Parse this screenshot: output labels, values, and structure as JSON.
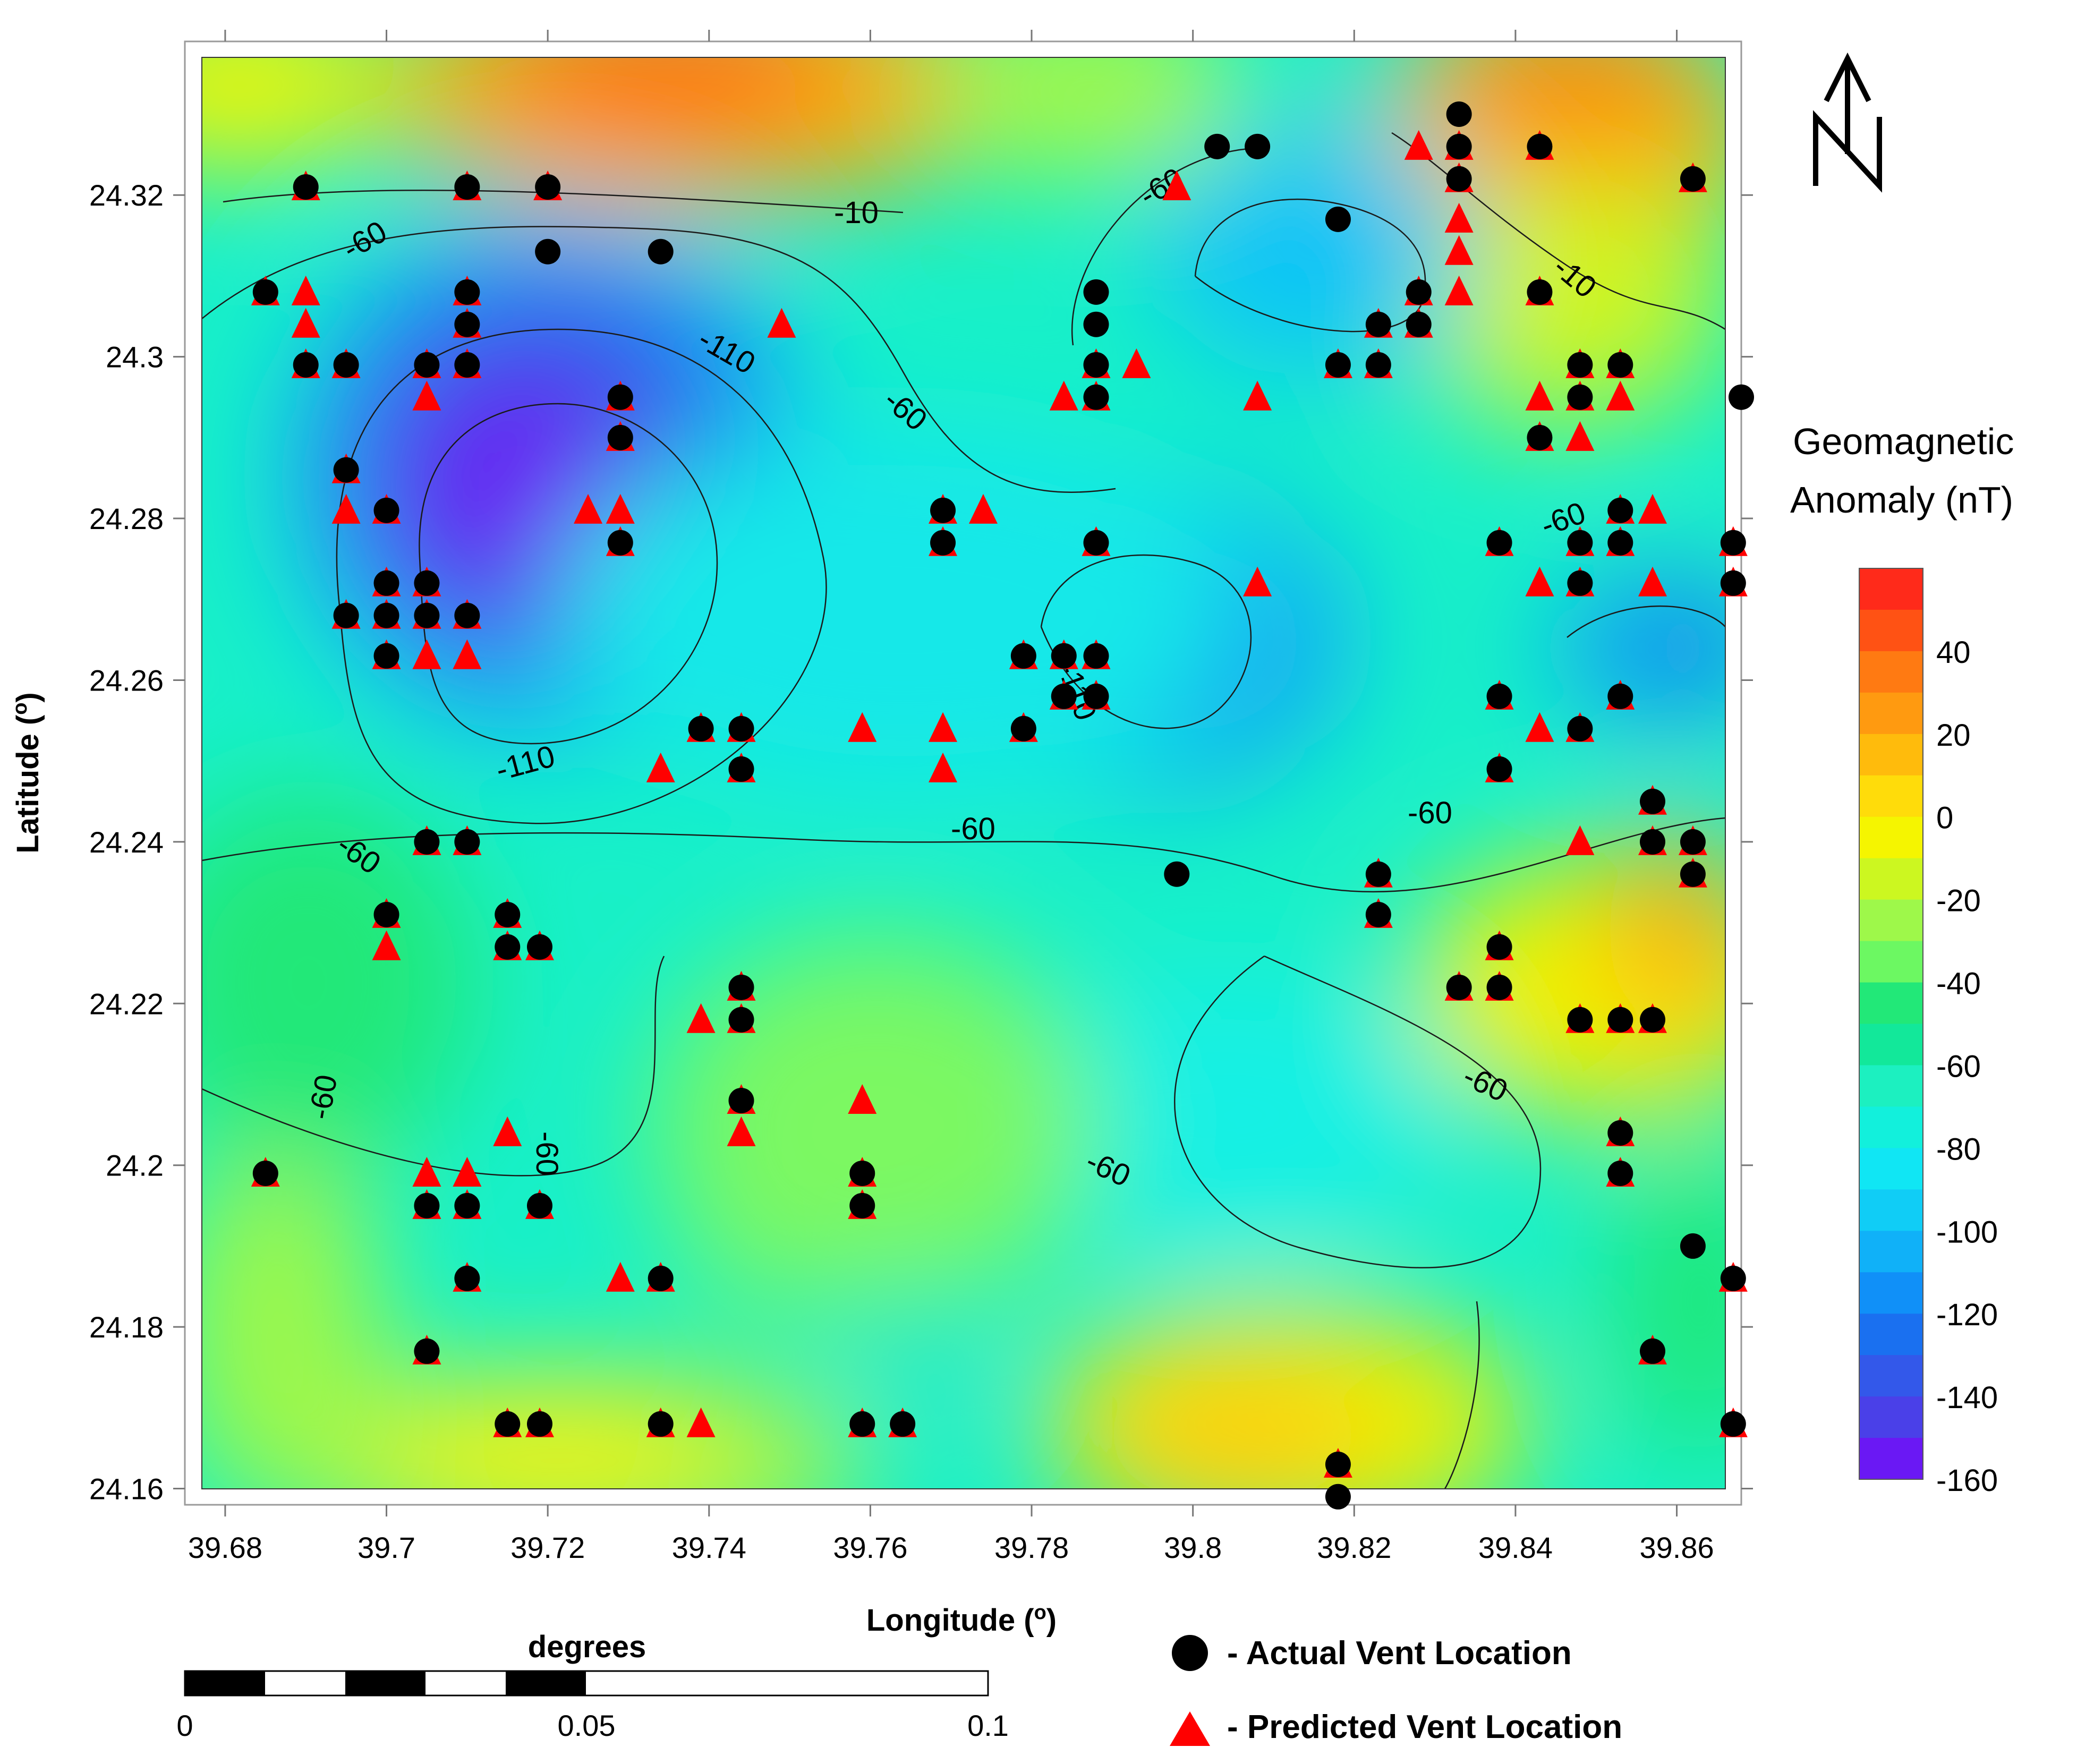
{
  "map": {
    "x_axis": {
      "title": "Longitude (o)",
      "title_text": "Longitude (",
      "title_sup": "o",
      "title_end": ")",
      "range": [
        39.675,
        39.868
      ],
      "ticks": [
        "39.68",
        "39.7",
        "39.72",
        "39.74",
        "39.76",
        "39.78",
        "39.8",
        "39.82",
        "39.84",
        "39.86"
      ],
      "tick_values": [
        39.68,
        39.7,
        39.72,
        39.74,
        39.76,
        39.78,
        39.8,
        39.82,
        39.84,
        39.86
      ]
    },
    "y_axis": {
      "title": "Latitude (o)",
      "title_text": "Latitude (",
      "title_sup": "o",
      "title_end": ")",
      "range": [
        24.158,
        24.339
      ],
      "ticks": [
        "24.16",
        "24.18",
        "24.2",
        "24.22",
        "24.24",
        "24.26",
        "24.28",
        "24.3",
        "24.32"
      ],
      "tick_values": [
        24.16,
        24.18,
        24.2,
        24.22,
        24.24,
        24.26,
        24.28,
        24.3,
        24.32
      ]
    },
    "colorbar": {
      "title_line1": "Geomagnetic",
      "title_line2": "Anomaly (nT)",
      "labels": [
        "40",
        "20",
        "0",
        "-20",
        "-40",
        "-60",
        "-80",
        "-100",
        "-120",
        "-140",
        "-160"
      ],
      "label_values": [
        40,
        20,
        0,
        -20,
        -40,
        -60,
        -80,
        -100,
        -120,
        -140,
        -160
      ],
      "range": [
        -160,
        60
      ],
      "colors": [
        "#ff2a1a",
        "#ff5214",
        "#ff7a12",
        "#ff9a10",
        "#ffbb0c",
        "#ffdc0a",
        "#f5f500",
        "#ccf720",
        "#9ef84a",
        "#6cf862",
        "#22e878",
        "#12e89a",
        "#1cf0c0",
        "#12f0dc",
        "#10e6f4",
        "#10cdf6",
        "#10b1f8",
        "#1090f8",
        "#1a70f0",
        "#3358ea",
        "#4a40e8",
        "#6a18f4"
      ]
    },
    "contour_labels": [
      "-10",
      "-10",
      "-60",
      "-60",
      "-60",
      "-60",
      "-60",
      "-60",
      "-60",
      "-60",
      "-60",
      "-60",
      "-60",
      "-110",
      "-110",
      "-110"
    ],
    "north_arrow": "N",
    "scale_bar": {
      "unit": "degrees",
      "labels": [
        "0",
        "0.05",
        "0.1"
      ]
    },
    "legend": {
      "actual": "- Actual Vent Location",
      "predicted": "- Predicted Vent Location"
    },
    "colors": {
      "actual_marker": "#000000",
      "predicted_marker": "#ff0000",
      "contour_line": "#1a1a1a"
    }
  },
  "actual_vents": [
    [
      39.69,
      24.321
    ],
    [
      39.71,
      24.321
    ],
    [
      39.72,
      24.321
    ],
    [
      39.685,
      24.308
    ],
    [
      39.72,
      24.313
    ],
    [
      39.734,
      24.313
    ],
    [
      39.71,
      24.308
    ],
    [
      39.71,
      24.304
    ],
    [
      39.69,
      24.299
    ],
    [
      39.695,
      24.299
    ],
    [
      39.705,
      24.299
    ],
    [
      39.71,
      24.299
    ],
    [
      39.729,
      24.295
    ],
    [
      39.729,
      24.29
    ],
    [
      39.695,
      24.286
    ],
    [
      39.7,
      24.281
    ],
    [
      39.729,
      24.277
    ],
    [
      39.7,
      24.272
    ],
    [
      39.705,
      24.272
    ],
    [
      39.695,
      24.268
    ],
    [
      39.7,
      24.268
    ],
    [
      39.705,
      24.268
    ],
    [
      39.71,
      24.268
    ],
    [
      39.7,
      24.263
    ],
    [
      39.739,
      24.254
    ],
    [
      39.744,
      24.254
    ],
    [
      39.744,
      24.249
    ],
    [
      39.705,
      24.24
    ],
    [
      39.71,
      24.24
    ],
    [
      39.7,
      24.231
    ],
    [
      39.715,
      24.231
    ],
    [
      39.715,
      24.227
    ],
    [
      39.719,
      24.227
    ],
    [
      39.744,
      24.222
    ],
    [
      39.744,
      24.218
    ],
    [
      39.744,
      24.208
    ],
    [
      39.685,
      24.199
    ],
    [
      39.759,
      24.199
    ],
    [
      39.705,
      24.195
    ],
    [
      39.71,
      24.195
    ],
    [
      39.719,
      24.195
    ],
    [
      39.759,
      24.195
    ],
    [
      39.71,
      24.186
    ],
    [
      39.734,
      24.186
    ],
    [
      39.705,
      24.177
    ],
    [
      39.715,
      24.168
    ],
    [
      39.719,
      24.168
    ],
    [
      39.734,
      24.168
    ],
    [
      39.759,
      24.168
    ],
    [
      39.764,
      24.168
    ],
    [
      39.769,
      24.281
    ],
    [
      39.769,
      24.277
    ],
    [
      39.788,
      24.277
    ],
    [
      39.779,
      24.263
    ],
    [
      39.784,
      24.263
    ],
    [
      39.788,
      24.263
    ],
    [
      39.784,
      24.258
    ],
    [
      39.788,
      24.258
    ],
    [
      39.779,
      24.254
    ],
    [
      39.788,
      24.308
    ],
    [
      39.788,
      24.304
    ],
    [
      39.788,
      24.299
    ],
    [
      39.788,
      24.295
    ],
    [
      39.803,
      24.326
    ],
    [
      39.808,
      24.326
    ],
    [
      39.818,
      24.317
    ],
    [
      39.833,
      24.33
    ],
    [
      39.833,
      24.326
    ],
    [
      39.843,
      24.326
    ],
    [
      39.833,
      24.322
    ],
    [
      39.862,
      24.322
    ],
    [
      39.828,
      24.308
    ],
    [
      39.843,
      24.308
    ],
    [
      39.823,
      24.304
    ],
    [
      39.828,
      24.304
    ],
    [
      39.818,
      24.299
    ],
    [
      39.823,
      24.299
    ],
    [
      39.848,
      24.299
    ],
    [
      39.853,
      24.299
    ],
    [
      39.848,
      24.295
    ],
    [
      39.868,
      24.295
    ],
    [
      39.843,
      24.29
    ],
    [
      39.853,
      24.281
    ],
    [
      39.838,
      24.277
    ],
    [
      39.848,
      24.277
    ],
    [
      39.853,
      24.277
    ],
    [
      39.867,
      24.277
    ],
    [
      39.848,
      24.272
    ],
    [
      39.867,
      24.272
    ],
    [
      39.838,
      24.258
    ],
    [
      39.853,
      24.258
    ],
    [
      39.848,
      24.254
    ],
    [
      39.838,
      24.249
    ],
    [
      39.857,
      24.245
    ],
    [
      39.857,
      24.24
    ],
    [
      39.862,
      24.24
    ],
    [
      39.798,
      24.236
    ],
    [
      39.823,
      24.236
    ],
    [
      39.862,
      24.236
    ],
    [
      39.823,
      24.231
    ],
    [
      39.838,
      24.227
    ],
    [
      39.833,
      24.222
    ],
    [
      39.838,
      24.222
    ],
    [
      39.848,
      24.218
    ],
    [
      39.853,
      24.218
    ],
    [
      39.857,
      24.218
    ],
    [
      39.853,
      24.204
    ],
    [
      39.853,
      24.199
    ],
    [
      39.862,
      24.19
    ],
    [
      39.867,
      24.186
    ],
    [
      39.857,
      24.177
    ],
    [
      39.867,
      24.168
    ],
    [
      39.818,
      24.163
    ],
    [
      39.818,
      24.159
    ]
  ],
  "predicted_vents": [
    [
      39.69,
      24.321
    ],
    [
      39.71,
      24.321
    ],
    [
      39.72,
      24.321
    ],
    [
      39.798,
      24.321
    ],
    [
      39.685,
      24.308
    ],
    [
      39.69,
      24.308
    ],
    [
      39.71,
      24.308
    ],
    [
      39.69,
      24.304
    ],
    [
      39.71,
      24.304
    ],
    [
      39.749,
      24.304
    ],
    [
      39.69,
      24.299
    ],
    [
      39.695,
      24.299
    ],
    [
      39.705,
      24.299
    ],
    [
      39.71,
      24.299
    ],
    [
      39.788,
      24.299
    ],
    [
      39.793,
      24.299
    ],
    [
      39.705,
      24.295
    ],
    [
      39.729,
      24.295
    ],
    [
      39.784,
      24.295
    ],
    [
      39.788,
      24.295
    ],
    [
      39.808,
      24.295
    ],
    [
      39.729,
      24.29
    ],
    [
      39.695,
      24.286
    ],
    [
      39.695,
      24.281
    ],
    [
      39.7,
      24.281
    ],
    [
      39.725,
      24.281
    ],
    [
      39.729,
      24.281
    ],
    [
      39.769,
      24.281
    ],
    [
      39.774,
      24.281
    ],
    [
      39.729,
      24.277
    ],
    [
      39.769,
      24.277
    ],
    [
      39.788,
      24.277
    ],
    [
      39.7,
      24.272
    ],
    [
      39.705,
      24.272
    ],
    [
      39.808,
      24.272
    ],
    [
      39.695,
      24.268
    ],
    [
      39.7,
      24.268
    ],
    [
      39.705,
      24.268
    ],
    [
      39.71,
      24.268
    ],
    [
      39.7,
      24.263
    ],
    [
      39.705,
      24.263
    ],
    [
      39.71,
      24.263
    ],
    [
      39.779,
      24.263
    ],
    [
      39.784,
      24.263
    ],
    [
      39.788,
      24.263
    ],
    [
      39.784,
      24.258
    ],
    [
      39.788,
      24.258
    ],
    [
      39.739,
      24.254
    ],
    [
      39.744,
      24.254
    ],
    [
      39.759,
      24.254
    ],
    [
      39.769,
      24.254
    ],
    [
      39.779,
      24.254
    ],
    [
      39.734,
      24.249
    ],
    [
      39.744,
      24.249
    ],
    [
      39.769,
      24.249
    ],
    [
      39.705,
      24.24
    ],
    [
      39.71,
      24.24
    ],
    [
      39.7,
      24.231
    ],
    [
      39.715,
      24.231
    ],
    [
      39.7,
      24.227
    ],
    [
      39.715,
      24.227
    ],
    [
      39.719,
      24.227
    ],
    [
      39.744,
      24.222
    ],
    [
      39.739,
      24.218
    ],
    [
      39.744,
      24.218
    ],
    [
      39.744,
      24.208
    ],
    [
      39.759,
      24.208
    ],
    [
      39.715,
      24.204
    ],
    [
      39.744,
      24.204
    ],
    [
      39.685,
      24.199
    ],
    [
      39.705,
      24.199
    ],
    [
      39.71,
      24.199
    ],
    [
      39.759,
      24.199
    ],
    [
      39.705,
      24.195
    ],
    [
      39.71,
      24.195
    ],
    [
      39.719,
      24.195
    ],
    [
      39.759,
      24.195
    ],
    [
      39.71,
      24.186
    ],
    [
      39.729,
      24.186
    ],
    [
      39.734,
      24.186
    ],
    [
      39.705,
      24.177
    ],
    [
      39.715,
      24.168
    ],
    [
      39.719,
      24.168
    ],
    [
      39.734,
      24.168
    ],
    [
      39.739,
      24.168
    ],
    [
      39.759,
      24.168
    ],
    [
      39.764,
      24.168
    ],
    [
      39.828,
      24.326
    ],
    [
      39.833,
      24.326
    ],
    [
      39.843,
      24.326
    ],
    [
      39.833,
      24.322
    ],
    [
      39.862,
      24.322
    ],
    [
      39.833,
      24.317
    ],
    [
      39.833,
      24.313
    ],
    [
      39.828,
      24.308
    ],
    [
      39.833,
      24.308
    ],
    [
      39.843,
      24.308
    ],
    [
      39.823,
      24.304
    ],
    [
      39.828,
      24.304
    ],
    [
      39.818,
      24.299
    ],
    [
      39.823,
      24.299
    ],
    [
      39.848,
      24.299
    ],
    [
      39.853,
      24.299
    ],
    [
      39.843,
      24.295
    ],
    [
      39.848,
      24.295
    ],
    [
      39.853,
      24.295
    ],
    [
      39.843,
      24.29
    ],
    [
      39.848,
      24.29
    ],
    [
      39.853,
      24.281
    ],
    [
      39.857,
      24.281
    ],
    [
      39.838,
      24.277
    ],
    [
      39.848,
      24.277
    ],
    [
      39.853,
      24.277
    ],
    [
      39.867,
      24.277
    ],
    [
      39.843,
      24.272
    ],
    [
      39.848,
      24.272
    ],
    [
      39.857,
      24.272
    ],
    [
      39.867,
      24.272
    ],
    [
      39.838,
      24.258
    ],
    [
      39.853,
      24.258
    ],
    [
      39.843,
      24.254
    ],
    [
      39.848,
      24.254
    ],
    [
      39.838,
      24.249
    ],
    [
      39.857,
      24.245
    ],
    [
      39.857,
      24.24
    ],
    [
      39.848,
      24.24
    ],
    [
      39.862,
      24.24
    ],
    [
      39.823,
      24.236
    ],
    [
      39.862,
      24.236
    ],
    [
      39.823,
      24.231
    ],
    [
      39.838,
      24.227
    ],
    [
      39.833,
      24.222
    ],
    [
      39.838,
      24.222
    ],
    [
      39.848,
      24.218
    ],
    [
      39.853,
      24.218
    ],
    [
      39.857,
      24.218
    ],
    [
      39.853,
      24.204
    ],
    [
      39.853,
      24.199
    ],
    [
      39.867,
      24.186
    ],
    [
      39.857,
      24.177
    ],
    [
      39.867,
      24.168
    ],
    [
      39.818,
      24.163
    ]
  ]
}
